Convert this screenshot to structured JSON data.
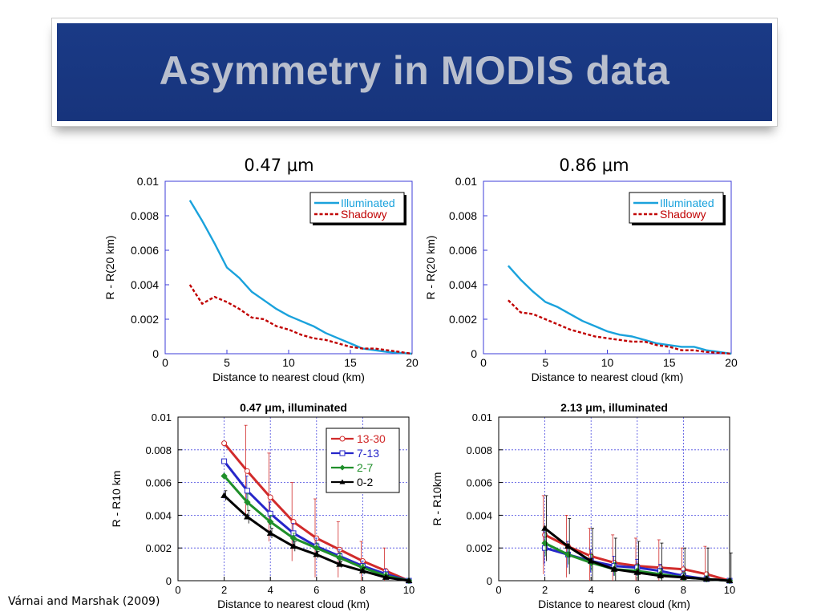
{
  "banner": {
    "title": "Asymmetry in MODIS data"
  },
  "top_titles": [
    "0.47 μm",
    "0.86 μm"
  ],
  "citation": "Várnai and Marshak (2009)",
  "colors": {
    "illuminated": "#1aa2dc",
    "shadowy": "#c00000",
    "s13_30": "#d12b2b",
    "s7_13": "#2626c9",
    "s2_7": "#1f8f2a",
    "s0_2": "#000000",
    "grid": "#4a4ae0"
  },
  "chart_data": [
    {
      "type": "line",
      "title": "",
      "xlabel": "Distance to nearest cloud (km)",
      "ylabel": "R - R(20 km)",
      "xlim": [
        0,
        20
      ],
      "ylim": [
        0,
        0.01
      ],
      "xticks": [
        0,
        5,
        10,
        15,
        20
      ],
      "yticks": [
        0,
        0.002,
        0.004,
        0.006,
        0.008,
        0.01
      ],
      "ytick_labels": [
        "0",
        "0.002",
        "0.004",
        "0.006",
        "0.008",
        "0.01"
      ],
      "grid": false,
      "legend": "top-right",
      "series": [
        {
          "name": "Illuminated",
          "color": "illuminated",
          "dash": false,
          "x": [
            2,
            3,
            4,
            5,
            6,
            7,
            8,
            9,
            10,
            11,
            12,
            13,
            14,
            15,
            16,
            17,
            18,
            19,
            20
          ],
          "y": [
            0.0089,
            0.0077,
            0.0064,
            0.005,
            0.0044,
            0.0036,
            0.0031,
            0.0026,
            0.0022,
            0.0019,
            0.0016,
            0.0012,
            0.0009,
            0.0006,
            0.0003,
            0.0002,
            0.0001,
            5e-05,
            0
          ]
        },
        {
          "name": "Shadowy",
          "color": "shadowy",
          "dash": true,
          "x": [
            2,
            3,
            4,
            5,
            6,
            7,
            8,
            9,
            10,
            11,
            12,
            13,
            14,
            15,
            16,
            17,
            18,
            19,
            20
          ],
          "y": [
            0.004,
            0.0029,
            0.0033,
            0.003,
            0.0026,
            0.0021,
            0.002,
            0.0016,
            0.0014,
            0.0011,
            0.0009,
            0.0008,
            0.0006,
            0.0004,
            0.0003,
            0.0003,
            0.0002,
            0.0001,
            0
          ]
        }
      ]
    },
    {
      "type": "line",
      "title": "",
      "xlabel": "Distance to nearest cloud (km)",
      "ylabel": "R - R(20 km)",
      "xlim": [
        0,
        20
      ],
      "ylim": [
        0,
        0.01
      ],
      "xticks": [
        0,
        5,
        10,
        15,
        20
      ],
      "yticks": [
        0,
        0.002,
        0.004,
        0.006,
        0.008,
        0.01
      ],
      "ytick_labels": [
        "0",
        "0.002",
        "0.004",
        "0.006",
        "0.008",
        "0.01"
      ],
      "grid": false,
      "legend": "top-right",
      "series": [
        {
          "name": "Illuminated",
          "color": "illuminated",
          "dash": false,
          "x": [
            2,
            3,
            4,
            5,
            6,
            7,
            8,
            9,
            10,
            11,
            12,
            13,
            14,
            15,
            16,
            17,
            18,
            19,
            20
          ],
          "y": [
            0.0051,
            0.0043,
            0.0036,
            0.003,
            0.0027,
            0.0023,
            0.0019,
            0.0016,
            0.0013,
            0.0011,
            0.001,
            0.0008,
            0.0006,
            0.0005,
            0.0004,
            0.0004,
            0.0002,
            0.0001,
            0
          ]
        },
        {
          "name": "Shadowy",
          "color": "shadowy",
          "dash": true,
          "x": [
            2,
            3,
            4,
            5,
            6,
            7,
            8,
            9,
            10,
            11,
            12,
            13,
            14,
            15,
            16,
            17,
            18,
            19,
            20
          ],
          "y": [
            0.0031,
            0.0024,
            0.0023,
            0.002,
            0.0017,
            0.0014,
            0.0012,
            0.001,
            0.0009,
            0.0008,
            0.0007,
            0.0007,
            0.0005,
            0.0004,
            0.0002,
            0.0002,
            0.0001,
            5e-05,
            0
          ]
        }
      ]
    },
    {
      "type": "line",
      "title": "0.47 μm, illuminated",
      "xlabel": "Distance to nearest cloud (km)",
      "ylabel": "R - R10 km",
      "xlim": [
        0,
        10
      ],
      "ylim": [
        0,
        0.01
      ],
      "xticks": [
        0,
        2,
        4,
        6,
        8,
        10
      ],
      "yticks": [
        0,
        0.002,
        0.004,
        0.006,
        0.008,
        0.01
      ],
      "ytick_labels": [
        "0",
        "0.002",
        "0.004",
        "0.006",
        "0.008",
        "0.01"
      ],
      "grid": true,
      "legend": "top-right",
      "series": [
        {
          "name": "13-30",
          "color": "s13_30",
          "marker": "circle",
          "x": [
            2,
            3,
            4,
            5,
            6,
            7,
            8,
            9,
            10
          ],
          "y": [
            0.0084,
            0.0067,
            0.0051,
            0.0036,
            0.0026,
            0.0019,
            0.0012,
            0.0006,
            0
          ],
          "err": [
            0.0,
            0.0028,
            0.0027,
            0.0024,
            0.0024,
            0.0017,
            0.0012,
            0.0014,
            0
          ]
        },
        {
          "name": "7-13",
          "color": "s7_13",
          "marker": "square",
          "x": [
            2,
            3,
            4,
            5,
            6,
            7,
            8,
            9,
            10
          ],
          "y": [
            0.0073,
            0.0055,
            0.0041,
            0.0029,
            0.0021,
            0.0015,
            0.0009,
            0.0004,
            0
          ],
          "err": [
            0.0,
            0.0009,
            0.0007,
            0.0006,
            0.0005,
            0.0004,
            0.0003,
            0.0003,
            0
          ]
        },
        {
          "name": "2-7",
          "color": "s2_7",
          "marker": "diamond",
          "x": [
            2,
            3,
            4,
            5,
            6,
            7,
            8,
            9,
            10
          ],
          "y": [
            0.0064,
            0.0048,
            0.0036,
            0.0026,
            0.002,
            0.0014,
            0.0008,
            0.0003,
            0
          ],
          "err": [
            0.0,
            0.0005,
            0.0004,
            0.0003,
            0.0003,
            0.0003,
            0.0002,
            0.0002,
            0
          ]
        },
        {
          "name": "0-2",
          "color": "s0_2",
          "marker": "triangle",
          "x": [
            2,
            3,
            4,
            5,
            6,
            7,
            8,
            9,
            10
          ],
          "y": [
            0.0052,
            0.0039,
            0.0029,
            0.0021,
            0.0016,
            0.001,
            0.0006,
            0.0002,
            0
          ],
          "err": [
            0.0003,
            0.0004,
            0.0003,
            0.0003,
            0.0002,
            0.0002,
            0.0002,
            0.0001,
            0
          ]
        }
      ]
    },
    {
      "type": "line",
      "title": "2.13 μm, illuminated",
      "xlabel": "Distance to nearest cloud (km)",
      "ylabel": "R - R10km",
      "xlim": [
        0,
        10
      ],
      "ylim": [
        0,
        0.01
      ],
      "xticks": [
        0,
        2,
        4,
        6,
        8,
        10
      ],
      "yticks": [
        0,
        0.002,
        0.004,
        0.006,
        0.008,
        0.01
      ],
      "ytick_labels": [
        "0",
        "0.002",
        "0.004",
        "0.006",
        "0.008",
        "0.01"
      ],
      "grid": true,
      "legend": "none",
      "series": [
        {
          "name": "",
          "color": "s13_30",
          "marker": "circle",
          "x": [
            2,
            3,
            4,
            5,
            6,
            7,
            8,
            9,
            10
          ],
          "y": [
            0.0028,
            0.0021,
            0.0015,
            0.0011,
            0.0009,
            0.0008,
            0.0007,
            0.0004,
            0
          ],
          "err": [
            0.0024,
            0.0019,
            0.0017,
            0.0017,
            0.0017,
            0.0017,
            0.0013,
            0.0017,
            0
          ]
        },
        {
          "name": "",
          "color": "s7_13",
          "marker": "square",
          "x": [
            2,
            3,
            4,
            5,
            6,
            7,
            8,
            9,
            10
          ],
          "y": [
            0.002,
            0.0016,
            0.0012,
            0.0009,
            0.0008,
            0.0006,
            0.0003,
            0.0001,
            0
          ],
          "err": [
            0.001,
            0.0008,
            0.0007,
            0.0006,
            0.0005,
            0.0004,
            0.0003,
            0.0002,
            0
          ]
        },
        {
          "name": "",
          "color": "s2_7",
          "marker": "diamond",
          "x": [
            2,
            3,
            4,
            5,
            6,
            7,
            8,
            9,
            10
          ],
          "y": [
            0.0023,
            0.0016,
            0.0011,
            0.0007,
            0.0006,
            0.0004,
            0.0002,
            0.0001,
            0
          ],
          "err": [
            0.0008,
            0.0006,
            0.0005,
            0.0004,
            0.0004,
            0.0003,
            0.0003,
            0.0002,
            0
          ]
        },
        {
          "name": "",
          "color": "s0_2",
          "marker": "triangle",
          "x": [
            2,
            3,
            4,
            5,
            6,
            7,
            8,
            9,
            10
          ],
          "y": [
            0.0032,
            0.0021,
            0.0012,
            0.0007,
            0.0005,
            0.0003,
            0.0002,
            0.0001,
            0
          ],
          "err": [
            0.002,
            0.0017,
            0.002,
            0.0019,
            0.0019,
            0.002,
            0.0018,
            0.0019,
            0.0017
          ]
        }
      ]
    }
  ]
}
